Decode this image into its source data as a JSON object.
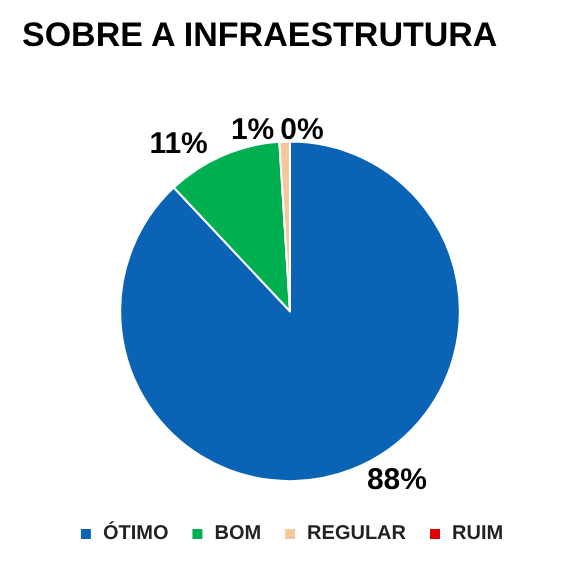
{
  "chart_data": {
    "type": "pie",
    "title": "SOBRE A INFRAESTRUTURA",
    "categories": [
      "ÓTIMO",
      "BOM",
      "REGULAR",
      "RUIM"
    ],
    "values": [
      88,
      11,
      1,
      0
    ],
    "value_labels": [
      "88%",
      "11%",
      "1%",
      "0%"
    ],
    "colors": [
      "#0b63b5",
      "#00b050",
      "#f6c79c",
      "#e00000"
    ],
    "legend": "bottom"
  }
}
